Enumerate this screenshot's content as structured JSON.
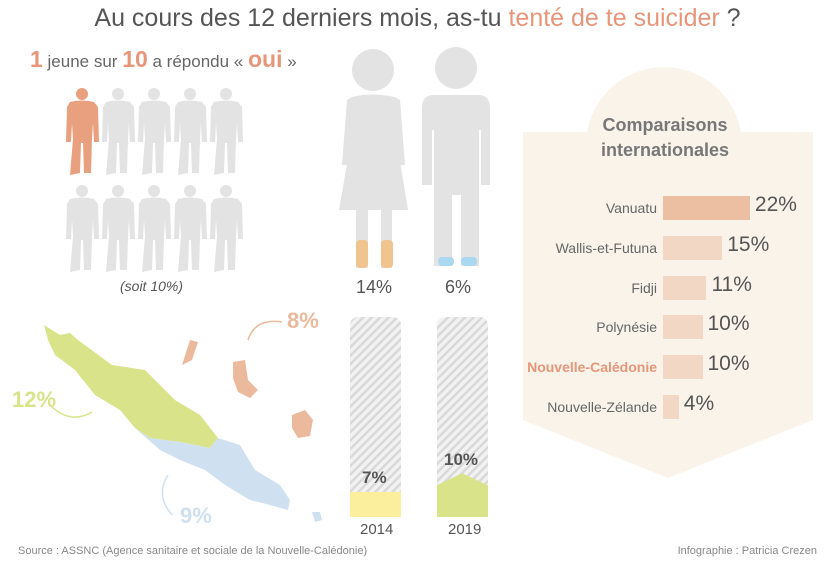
{
  "title": {
    "prefix": "Au cours des 12 derniers mois, as-tu ",
    "highlight": "tenté de te suicider",
    "suffix": " ?"
  },
  "subhead": {
    "n1": "1",
    "t1": " jeune sur ",
    "n2": "10",
    "t2": " a répondu « ",
    "oui": "oui",
    "t3": " »"
  },
  "people": {
    "total": 10,
    "highlighted": 1,
    "note": "(soit 10%)"
  },
  "gender": {
    "female_pct": "14%",
    "male_pct": "6%",
    "female_value": 14,
    "male_value": 6
  },
  "map": {
    "nord": {
      "label": "12%",
      "color": "#d9e48a"
    },
    "sud": {
      "label": "9%",
      "color": "#cfe1f1"
    },
    "iles": {
      "label": "8%",
      "color": "#ebb99b"
    }
  },
  "chart_data": [
    {
      "type": "bar",
      "title": "Comparaisons internationales",
      "categories": [
        "Vanuatu",
        "Wallis-et-Futuna",
        "Fidji",
        "Polynésie",
        "Nouvelle-Calédonie",
        "Nouvelle-Zélande"
      ],
      "values": [
        22,
        15,
        11,
        10,
        10,
        4
      ],
      "value_labels": [
        "22%",
        "15%",
        "11%",
        "10%",
        "10%",
        "4%"
      ],
      "highlight": "Nouvelle-Calédonie",
      "orientation": "horizontal",
      "colors": [
        "#edbfa2",
        "#f2d7c5",
        "#f2d7c5",
        "#f2d7c5",
        "#f2d7c5",
        "#f2d7c5"
      ]
    },
    {
      "type": "bar",
      "categories": [
        "2014",
        "2019"
      ],
      "values": [
        7,
        10
      ],
      "value_labels": [
        "7%",
        "10%"
      ],
      "colors": [
        "#fbef9e",
        "#d9e48a"
      ],
      "ylim": [
        0,
        56
      ]
    }
  ],
  "footer": {
    "source": "Source : ASSNC (Agence sanitaire et sociale de la Nouvelle-Calédonie)",
    "credit": "Infographie : Patricia Crezen"
  }
}
